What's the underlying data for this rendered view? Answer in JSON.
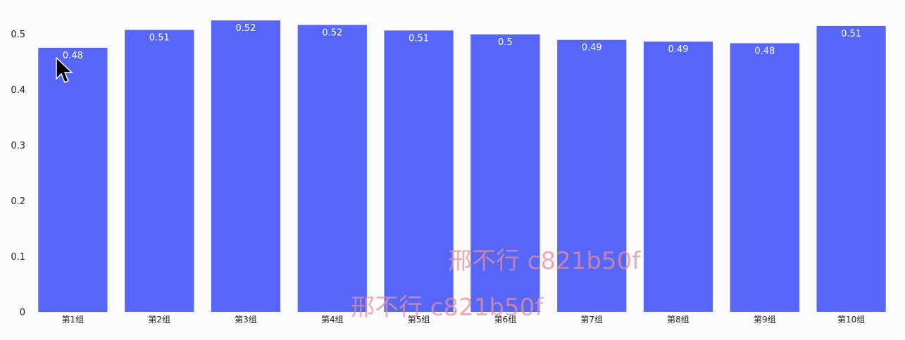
{
  "chart_data": {
    "type": "bar",
    "categories": [
      "第1组",
      "第2组",
      "第3组",
      "第4组",
      "第5组",
      "第6组",
      "第7组",
      "第8组",
      "第9组",
      "第10组"
    ],
    "values": [
      0.475,
      0.507,
      0.524,
      0.516,
      0.506,
      0.499,
      0.489,
      0.486,
      0.483,
      0.514
    ],
    "data_labels": [
      "0.48",
      "0.51",
      "0.52",
      "0.52",
      "0.51",
      "0.5",
      "0.49",
      "0.49",
      "0.48",
      "0.51"
    ],
    "title": "",
    "xlabel": "",
    "ylabel": "",
    "ylim": [
      0,
      0.5
    ],
    "yticks": [
      "0",
      "0.1",
      "0.2",
      "0.3",
      "0.4",
      "0.5"
    ],
    "bar_color": "#5566f8",
    "grid": false,
    "legend": "none"
  },
  "overlay": {
    "watermark_text": "邢不行 c821b50f",
    "cursor_icon": "arrow-cursor-icon"
  }
}
